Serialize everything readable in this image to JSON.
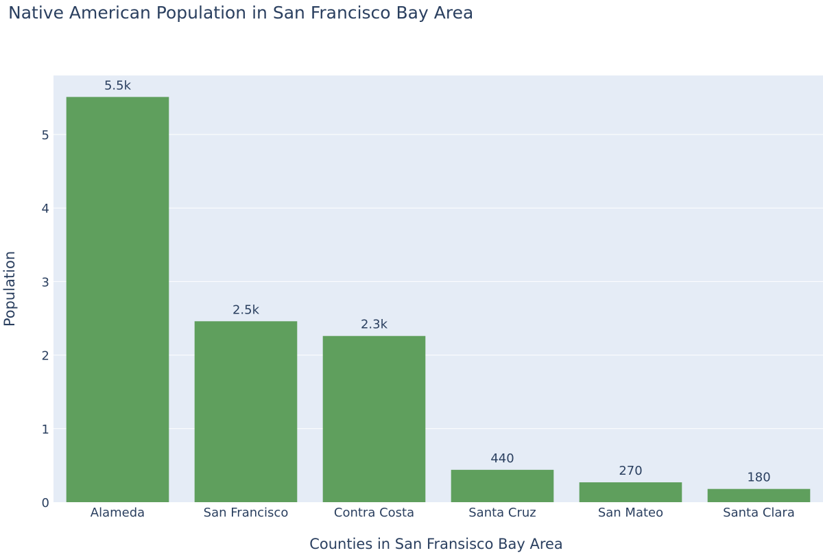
{
  "chart_data": {
    "type": "bar",
    "title": "Native American Population in San Francisco Bay Area",
    "xlabel": "Counties in San Fransisco Bay Area",
    "ylabel": "Population",
    "categories": [
      "Alameda",
      "San Francisco",
      "Contra Costa",
      "Santa Cruz",
      "San Mateo",
      "Santa Clara"
    ],
    "values": [
      5510,
      2460,
      2260,
      440,
      270,
      180
    ],
    "value_labels": [
      "5.5k",
      "2.5k",
      "2.3k",
      "440",
      "270",
      "180"
    ],
    "y_ticks": [
      0,
      1000,
      2000,
      3000,
      4000,
      5000
    ],
    "y_tick_labels": [
      "0",
      "1",
      "2",
      "3",
      "4",
      "5"
    ],
    "ylim": [
      0,
      5800
    ],
    "grid": true,
    "legend": false,
    "colors": {
      "bar": "#5f9f5d",
      "plot_bg": "#e5ecf6",
      "grid": "#ffffff",
      "text": "#2a3f5f"
    }
  }
}
